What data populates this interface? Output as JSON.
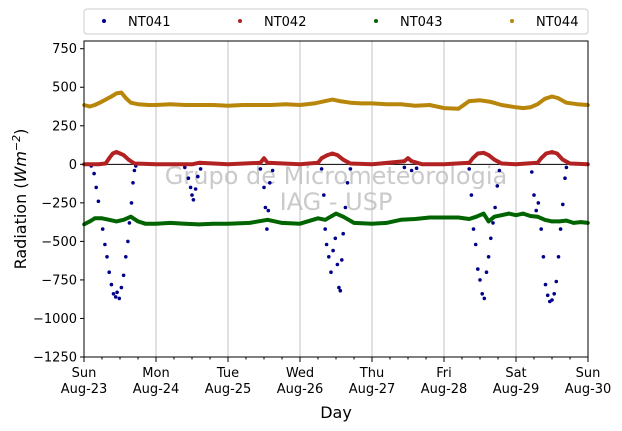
{
  "chart_data": {
    "type": "scatter",
    "xlabel": "Day",
    "ylabel_main": "Radiation (",
    "ylabel_unit": "Wm",
    "ylabel_exp": "−2",
    "ylabel_close": ")",
    "ylim": [
      -1250,
      800
    ],
    "yticks": [
      -1250,
      -1000,
      -750,
      -500,
      -250,
      0,
      250,
      500,
      750
    ],
    "ytick_labels": [
      "−1250",
      "−1000",
      "−750",
      "−500",
      "−250",
      "0",
      "250",
      "500",
      "750"
    ],
    "xlim_days": [
      0,
      7
    ],
    "xticks": [
      {
        "day": 0,
        "line1": "Sun",
        "line2": "Aug-23"
      },
      {
        "day": 1,
        "line1": "Mon",
        "line2": "Aug-24"
      },
      {
        "day": 2,
        "line1": "Tue",
        "line2": "Aug-25"
      },
      {
        "day": 3,
        "line1": "Wed",
        "line2": "Aug-26"
      },
      {
        "day": 4,
        "line1": "Thu",
        "line2": "Aug-27"
      },
      {
        "day": 5,
        "line1": "Fri",
        "line2": "Aug-28"
      },
      {
        "day": 6,
        "line1": "Sat",
        "line2": "Aug-29"
      },
      {
        "day": 7,
        "line1": "Sun",
        "line2": "Aug-30"
      }
    ],
    "grid": "x",
    "zero_line": 0,
    "legend_placement": "top",
    "watermark_line1": "Grupo de Micrometeorologia",
    "watermark_line2": "IAG - USP",
    "series": [
      {
        "name": "NT041",
        "color": "#00008b",
        "points": [
          [
            0.1,
            -10
          ],
          [
            0.14,
            -60
          ],
          [
            0.17,
            -150
          ],
          [
            0.2,
            -240
          ],
          [
            0.23,
            -350
          ],
          [
            0.26,
            -420
          ],
          [
            0.29,
            -520
          ],
          [
            0.32,
            -600
          ],
          [
            0.35,
            -700
          ],
          [
            0.38,
            -780
          ],
          [
            0.41,
            -840
          ],
          [
            0.44,
            -860
          ],
          [
            0.46,
            -830
          ],
          [
            0.49,
            -870
          ],
          [
            0.52,
            -800
          ],
          [
            0.55,
            -720
          ],
          [
            0.58,
            -600
          ],
          [
            0.61,
            -500
          ],
          [
            0.63,
            -380
          ],
          [
            0.66,
            -250
          ],
          [
            0.68,
            -120
          ],
          [
            0.7,
            -40
          ],
          [
            0.72,
            -10
          ],
          [
            1.4,
            -20
          ],
          [
            1.45,
            -90
          ],
          [
            1.48,
            -150
          ],
          [
            1.5,
            -200
          ],
          [
            1.52,
            -230
          ],
          [
            1.55,
            -160
          ],
          [
            1.58,
            -80
          ],
          [
            1.62,
            -30
          ],
          [
            2.45,
            -30
          ],
          [
            2.5,
            -150
          ],
          [
            2.52,
            -280
          ],
          [
            2.54,
            -420
          ],
          [
            2.56,
            -300
          ],
          [
            2.58,
            -120
          ],
          [
            2.62,
            -40
          ],
          [
            3.3,
            -30
          ],
          [
            3.33,
            -200
          ],
          [
            3.35,
            -420
          ],
          [
            3.37,
            -520
          ],
          [
            3.4,
            -600
          ],
          [
            3.43,
            -700
          ],
          [
            3.46,
            -560
          ],
          [
            3.49,
            -480
          ],
          [
            3.52,
            -650
          ],
          [
            3.54,
            -800
          ],
          [
            3.56,
            -820
          ],
          [
            3.58,
            -620
          ],
          [
            3.6,
            -450
          ],
          [
            3.63,
            -280
          ],
          [
            3.66,
            -120
          ],
          [
            3.7,
            -30
          ],
          [
            4.45,
            -20
          ],
          [
            4.55,
            -40
          ],
          [
            4.62,
            -25
          ],
          [
            5.35,
            -30
          ],
          [
            5.38,
            -200
          ],
          [
            5.41,
            -420
          ],
          [
            5.44,
            -520
          ],
          [
            5.47,
            -680
          ],
          [
            5.5,
            -750
          ],
          [
            5.53,
            -840
          ],
          [
            5.56,
            -870
          ],
          [
            5.59,
            -700
          ],
          [
            5.62,
            -600
          ],
          [
            5.65,
            -480
          ],
          [
            5.68,
            -380
          ],
          [
            5.71,
            -280
          ],
          [
            5.74,
            -140
          ],
          [
            5.77,
            -40
          ],
          [
            6.22,
            -50
          ],
          [
            6.25,
            -200
          ],
          [
            6.28,
            -300
          ],
          [
            6.31,
            -250
          ],
          [
            6.35,
            -420
          ],
          [
            6.38,
            -600
          ],
          [
            6.41,
            -780
          ],
          [
            6.44,
            -850
          ],
          [
            6.47,
            -890
          ],
          [
            6.5,
            -880
          ],
          [
            6.53,
            -840
          ],
          [
            6.56,
            -760
          ],
          [
            6.59,
            -600
          ],
          [
            6.62,
            -420
          ],
          [
            6.65,
            -260
          ],
          [
            6.68,
            -90
          ],
          [
            6.7,
            -20
          ]
        ]
      },
      {
        "name": "NT042",
        "color": "#b22222",
        "points": [
          [
            0.0,
            0
          ],
          [
            0.2,
            0
          ],
          [
            0.3,
            5
          ],
          [
            0.35,
            40
          ],
          [
            0.4,
            70
          ],
          [
            0.45,
            80
          ],
          [
            0.5,
            70
          ],
          [
            0.55,
            60
          ],
          [
            0.62,
            30
          ],
          [
            0.7,
            5
          ],
          [
            1.0,
            0
          ],
          [
            1.5,
            0
          ],
          [
            1.6,
            10
          ],
          [
            2.0,
            0
          ],
          [
            2.45,
            10
          ],
          [
            2.5,
            40
          ],
          [
            2.55,
            10
          ],
          [
            3.0,
            0
          ],
          [
            3.25,
            10
          ],
          [
            3.3,
            40
          ],
          [
            3.38,
            60
          ],
          [
            3.45,
            70
          ],
          [
            3.52,
            60
          ],
          [
            3.6,
            30
          ],
          [
            3.7,
            5
          ],
          [
            4.0,
            0
          ],
          [
            4.45,
            20
          ],
          [
            4.5,
            40
          ],
          [
            4.55,
            20
          ],
          [
            4.7,
            0
          ],
          [
            5.0,
            0
          ],
          [
            5.35,
            10
          ],
          [
            5.4,
            40
          ],
          [
            5.47,
            70
          ],
          [
            5.55,
            75
          ],
          [
            5.62,
            60
          ],
          [
            5.7,
            30
          ],
          [
            5.8,
            5
          ],
          [
            6.0,
            0
          ],
          [
            6.3,
            10
          ],
          [
            6.35,
            40
          ],
          [
            6.42,
            70
          ],
          [
            6.5,
            80
          ],
          [
            6.57,
            70
          ],
          [
            6.65,
            30
          ],
          [
            6.75,
            5
          ],
          [
            7.0,
            0
          ]
        ]
      },
      {
        "name": "NT043",
        "color": "#006400",
        "points": [
          [
            0.0,
            -390
          ],
          [
            0.08,
            -370
          ],
          [
            0.15,
            -350
          ],
          [
            0.25,
            -350
          ],
          [
            0.35,
            -360
          ],
          [
            0.45,
            -370
          ],
          [
            0.55,
            -360
          ],
          [
            0.65,
            -340
          ],
          [
            0.75,
            -370
          ],
          [
            0.85,
            -385
          ],
          [
            1.0,
            -385
          ],
          [
            1.2,
            -380
          ],
          [
            1.4,
            -385
          ],
          [
            1.6,
            -390
          ],
          [
            1.8,
            -385
          ],
          [
            2.0,
            -385
          ],
          [
            2.3,
            -380
          ],
          [
            2.55,
            -360
          ],
          [
            2.75,
            -380
          ],
          [
            3.0,
            -385
          ],
          [
            3.25,
            -350
          ],
          [
            3.35,
            -360
          ],
          [
            3.5,
            -320
          ],
          [
            3.6,
            -340
          ],
          [
            3.75,
            -380
          ],
          [
            4.0,
            -385
          ],
          [
            4.2,
            -380
          ],
          [
            4.4,
            -360
          ],
          [
            4.6,
            -355
          ],
          [
            4.8,
            -345
          ],
          [
            5.0,
            -345
          ],
          [
            5.2,
            -345
          ],
          [
            5.35,
            -355
          ],
          [
            5.45,
            -340
          ],
          [
            5.55,
            -320
          ],
          [
            5.62,
            -370
          ],
          [
            5.7,
            -340
          ],
          [
            5.8,
            -330
          ],
          [
            5.9,
            -320
          ],
          [
            6.0,
            -330
          ],
          [
            6.1,
            -320
          ],
          [
            6.2,
            -335
          ],
          [
            6.3,
            -340
          ],
          [
            6.4,
            -360
          ],
          [
            6.5,
            -370
          ],
          [
            6.6,
            -370
          ],
          [
            6.7,
            -365
          ],
          [
            6.8,
            -380
          ],
          [
            6.9,
            -375
          ],
          [
            7.0,
            -380
          ]
        ]
      },
      {
        "name": "NT044",
        "color": "#b8860b",
        "points": [
          [
            0.0,
            385
          ],
          [
            0.08,
            375
          ],
          [
            0.15,
            385
          ],
          [
            0.22,
            400
          ],
          [
            0.3,
            420
          ],
          [
            0.38,
            440
          ],
          [
            0.45,
            460
          ],
          [
            0.52,
            465
          ],
          [
            0.58,
            430
          ],
          [
            0.65,
            400
          ],
          [
            0.75,
            390
          ],
          [
            0.9,
            385
          ],
          [
            1.0,
            385
          ],
          [
            1.2,
            390
          ],
          [
            1.4,
            385
          ],
          [
            1.6,
            385
          ],
          [
            1.8,
            385
          ],
          [
            2.0,
            380
          ],
          [
            2.2,
            385
          ],
          [
            2.4,
            385
          ],
          [
            2.6,
            385
          ],
          [
            2.8,
            390
          ],
          [
            3.0,
            385
          ],
          [
            3.2,
            395
          ],
          [
            3.35,
            410
          ],
          [
            3.45,
            420
          ],
          [
            3.55,
            410
          ],
          [
            3.7,
            400
          ],
          [
            3.85,
            395
          ],
          [
            4.0,
            395
          ],
          [
            4.2,
            390
          ],
          [
            4.4,
            390
          ],
          [
            4.6,
            380
          ],
          [
            4.8,
            385
          ],
          [
            5.0,
            365
          ],
          [
            5.2,
            360
          ],
          [
            5.35,
            410
          ],
          [
            5.5,
            415
          ],
          [
            5.65,
            405
          ],
          [
            5.8,
            385
          ],
          [
            6.0,
            370
          ],
          [
            6.1,
            365
          ],
          [
            6.2,
            370
          ],
          [
            6.3,
            390
          ],
          [
            6.4,
            425
          ],
          [
            6.5,
            440
          ],
          [
            6.58,
            430
          ],
          [
            6.7,
            400
          ],
          [
            6.85,
            390
          ],
          [
            7.0,
            385
          ]
        ]
      }
    ]
  }
}
